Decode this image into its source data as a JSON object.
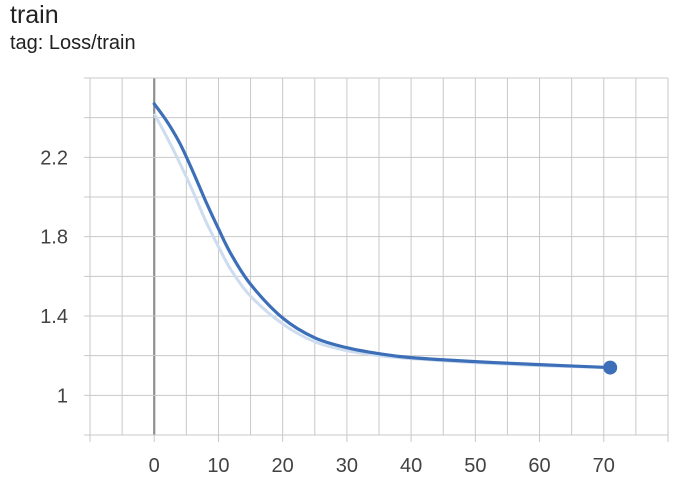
{
  "header": {
    "title": "train",
    "subtitle": "tag: Loss/train"
  },
  "colors": {
    "smoothed": "#3d6fb8",
    "raw": "#cddcef",
    "grid": "#c8c8c8",
    "zero_axis": "#8f8f8f"
  },
  "chart_data": {
    "type": "line",
    "title": "train",
    "subtitle": "tag: Loss/train",
    "xlabel": "",
    "ylabel": "",
    "xlim": [
      -10,
      80
    ],
    "ylim": [
      0.8,
      2.6
    ],
    "xticks": [
      0,
      10,
      20,
      30,
      40,
      50,
      60,
      70
    ],
    "yticks": [
      1,
      1.4,
      1.8,
      2.2
    ],
    "ytick_labels": [
      "1",
      "1.4",
      "1.8",
      "2.2"
    ],
    "grid": true,
    "series": [
      {
        "role": "smoothed",
        "x": [
          0,
          2,
          4,
          6,
          8,
          10,
          12,
          15,
          20,
          25,
          30,
          35,
          40,
          50,
          60,
          71
        ],
        "y": [
          2.47,
          2.38,
          2.27,
          2.13,
          1.98,
          1.84,
          1.71,
          1.56,
          1.39,
          1.29,
          1.24,
          1.21,
          1.19,
          1.17,
          1.155,
          1.14
        ]
      },
      {
        "role": "raw",
        "x": [
          0,
          2,
          4,
          6,
          8,
          10,
          12,
          15,
          20,
          25,
          30,
          35,
          40,
          50,
          60,
          71
        ],
        "y": [
          2.42,
          2.3,
          2.17,
          2.03,
          1.88,
          1.75,
          1.63,
          1.5,
          1.36,
          1.27,
          1.225,
          1.2,
          1.185,
          1.165,
          1.15,
          1.14
        ]
      }
    ],
    "last_point": {
      "x": 71,
      "y": 1.14
    }
  }
}
